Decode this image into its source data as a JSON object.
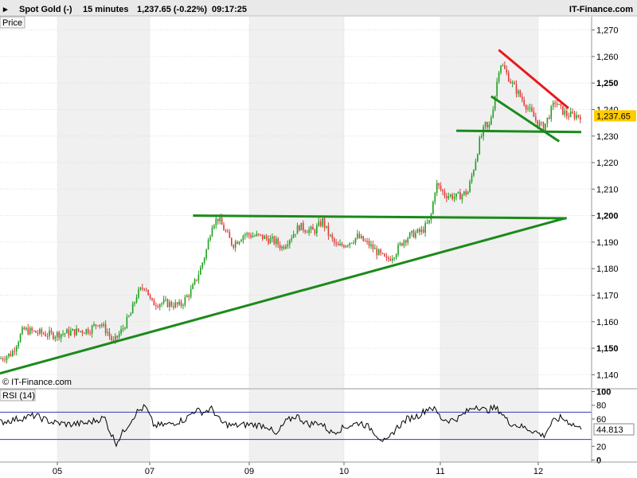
{
  "header": {
    "instrument": "Spot Gold (-)",
    "interval": "15 minutes",
    "quote": "1,237.65 (-0.22%)",
    "time": "09:17:25",
    "brand": "IT-Finance.com"
  },
  "price_panel": {
    "label": "Price",
    "copyright": "© IT-Finance.com",
    "last_price_badge": "1,237.65"
  },
  "rsi_panel": {
    "label": "RSI (14)",
    "last_value_badge": "44.813"
  },
  "colors": {
    "up": "#1fa01f",
    "down": "#e23a3a",
    "trendline_green": "#1b8a1b",
    "trendline_red": "#e8191b",
    "badge": "#ffcc00",
    "rsi_line": "#000000",
    "rsi_level": "#3a3ab8",
    "rsi_fill": "#e8b0b0",
    "band": "#f0f0f0"
  },
  "chart_data": [
    {
      "type": "candlestick",
      "title": "Spot Gold (-) 15 minutes",
      "ylabel": "Price",
      "ylim": [
        1135,
        1275
      ],
      "x_tick_labels": [
        "05",
        "07",
        "09",
        "10",
        "11",
        "12"
      ],
      "y_ticks": [
        {
          "value": 1270,
          "label": "1,270",
          "bold": false
        },
        {
          "value": 1260,
          "label": "1,260",
          "bold": false
        },
        {
          "value": 1250,
          "label": "1,250",
          "bold": true
        },
        {
          "value": 1240,
          "label": "1,240",
          "bold": false
        },
        {
          "value": 1230,
          "label": "1,230",
          "bold": false
        },
        {
          "value": 1220,
          "label": "1,220",
          "bold": false
        },
        {
          "value": 1210,
          "label": "1,210",
          "bold": false
        },
        {
          "value": 1200,
          "label": "1,200",
          "bold": true
        },
        {
          "value": 1190,
          "label": "1,190",
          "bold": false
        },
        {
          "value": 1180,
          "label": "1,180",
          "bold": false
        },
        {
          "value": 1170,
          "label": "1,170",
          "bold": false
        },
        {
          "value": 1160,
          "label": "1,160",
          "bold": false
        },
        {
          "value": 1150,
          "label": "1,150",
          "bold": true
        },
        {
          "value": 1140,
          "label": "1,140",
          "bold": false
        }
      ],
      "last_price": 1237.65,
      "close_path": [
        [
          0,
          1146
        ],
        [
          0.02,
          1148
        ],
        [
          0.04,
          1157
        ],
        [
          0.06,
          1156
        ],
        [
          0.09,
          1155
        ],
        [
          0.12,
          1156
        ],
        [
          0.155,
          1157
        ],
        [
          0.17,
          1160
        ],
        [
          0.185,
          1156
        ],
        [
          0.195,
          1152
        ],
        [
          0.21,
          1157
        ],
        [
          0.225,
          1163
        ],
        [
          0.235,
          1170
        ],
        [
          0.25,
          1174
        ],
        [
          0.26,
          1167
        ],
        [
          0.285,
          1167
        ],
        [
          0.31,
          1166
        ],
        [
          0.33,
          1172
        ],
        [
          0.345,
          1180
        ],
        [
          0.355,
          1187
        ],
        [
          0.365,
          1197
        ],
        [
          0.375,
          1199
        ],
        [
          0.385,
          1195
        ],
        [
          0.4,
          1189
        ],
        [
          0.42,
          1193
        ],
        [
          0.45,
          1192
        ],
        [
          0.475,
          1190
        ],
        [
          0.485,
          1188
        ],
        [
          0.5,
          1192
        ],
        [
          0.515,
          1196
        ],
        [
          0.525,
          1195
        ],
        [
          0.54,
          1194
        ],
        [
          0.555,
          1198
        ],
        [
          0.565,
          1193
        ],
        [
          0.58,
          1188
        ],
        [
          0.6,
          1190
        ],
        [
          0.615,
          1192
        ],
        [
          0.635,
          1189
        ],
        [
          0.65,
          1186
        ],
        [
          0.665,
          1183
        ],
        [
          0.68,
          1186
        ],
        [
          0.695,
          1191
        ],
        [
          0.71,
          1193
        ],
        [
          0.725,
          1194
        ],
        [
          0.74,
          1198
        ],
        [
          0.75,
          1212
        ],
        [
          0.765,
          1208
        ],
        [
          0.785,
          1207
        ],
        [
          0.805,
          1209
        ],
        [
          0.815,
          1218
        ],
        [
          0.825,
          1228
        ],
        [
          0.835,
          1234
        ],
        [
          0.84,
          1232
        ],
        [
          0.85,
          1243
        ],
        [
          0.86,
          1258
        ],
        [
          0.868,
          1255
        ],
        [
          0.88,
          1250
        ],
        [
          0.895,
          1245
        ],
        [
          0.91,
          1240
        ],
        [
          0.925,
          1235
        ],
        [
          0.935,
          1233
        ],
        [
          0.945,
          1238
        ],
        [
          0.955,
          1243
        ],
        [
          0.965,
          1240
        ],
        [
          0.975,
          1238
        ],
        [
          1,
          1237.65
        ]
      ],
      "trendlines": [
        {
          "color": "green",
          "from": [
            1140.5,
            0.0
          ],
          "to": [
            1199,
            0.972
          ]
        },
        {
          "color": "green",
          "from": [
            1200,
            0.332
          ],
          "to": [
            1199,
            0.975
          ]
        },
        {
          "color": "green",
          "from": [
            1232,
            0.785
          ],
          "to": [
            1231.5,
            1.0
          ]
        },
        {
          "color": "green",
          "from": [
            1245,
            0.845
          ],
          "to": [
            1228,
            0.962
          ]
        },
        {
          "color": "red",
          "from": [
            1262.5,
            0.858
          ],
          "to": [
            1240.5,
            0.978
          ]
        }
      ]
    },
    {
      "type": "line",
      "title": "RSI (14)",
      "ylim": [
        -3,
        103
      ],
      "y_ticks": [
        {
          "value": 100,
          "label": "100",
          "bold": true
        },
        {
          "value": 80,
          "label": "80",
          "bold": false
        },
        {
          "value": 60,
          "label": "60",
          "bold": false
        },
        {
          "value": 20,
          "label": "20",
          "bold": false
        },
        {
          "value": 0,
          "label": "0",
          "bold": true
        }
      ],
      "levels": [
        70,
        30
      ],
      "last_value": 44.813,
      "path": [
        [
          0,
          55
        ],
        [
          0.03,
          60
        ],
        [
          0.06,
          65
        ],
        [
          0.09,
          55
        ],
        [
          0.12,
          52
        ],
        [
          0.15,
          54
        ],
        [
          0.18,
          62
        ],
        [
          0.19,
          40
        ],
        [
          0.2,
          25
        ],
        [
          0.215,
          45
        ],
        [
          0.235,
          70
        ],
        [
          0.25,
          78
        ],
        [
          0.265,
          50
        ],
        [
          0.29,
          52
        ],
        [
          0.32,
          60
        ],
        [
          0.335,
          73
        ],
        [
          0.35,
          70
        ],
        [
          0.365,
          75
        ],
        [
          0.38,
          55
        ],
        [
          0.4,
          50
        ],
        [
          0.43,
          52
        ],
        [
          0.46,
          50
        ],
        [
          0.475,
          35
        ],
        [
          0.49,
          55
        ],
        [
          0.51,
          65
        ],
        [
          0.53,
          52
        ],
        [
          0.55,
          55
        ],
        [
          0.57,
          40
        ],
        [
          0.6,
          50
        ],
        [
          0.62,
          55
        ],
        [
          0.64,
          45
        ],
        [
          0.65,
          35
        ],
        [
          0.665,
          25
        ],
        [
          0.68,
          45
        ],
        [
          0.7,
          60
        ],
        [
          0.72,
          65
        ],
        [
          0.74,
          78
        ],
        [
          0.75,
          72
        ],
        [
          0.76,
          60
        ],
        [
          0.775,
          58
        ],
        [
          0.79,
          62
        ],
        [
          0.805,
          72
        ],
        [
          0.82,
          80
        ],
        [
          0.835,
          72
        ],
        [
          0.85,
          76
        ],
        [
          0.86,
          72
        ],
        [
          0.875,
          55
        ],
        [
          0.9,
          48
        ],
        [
          0.92,
          42
        ],
        [
          0.935,
          35
        ],
        [
          0.95,
          55
        ],
        [
          0.965,
          62
        ],
        [
          0.98,
          55
        ],
        [
          1,
          44.813
        ]
      ]
    }
  ]
}
